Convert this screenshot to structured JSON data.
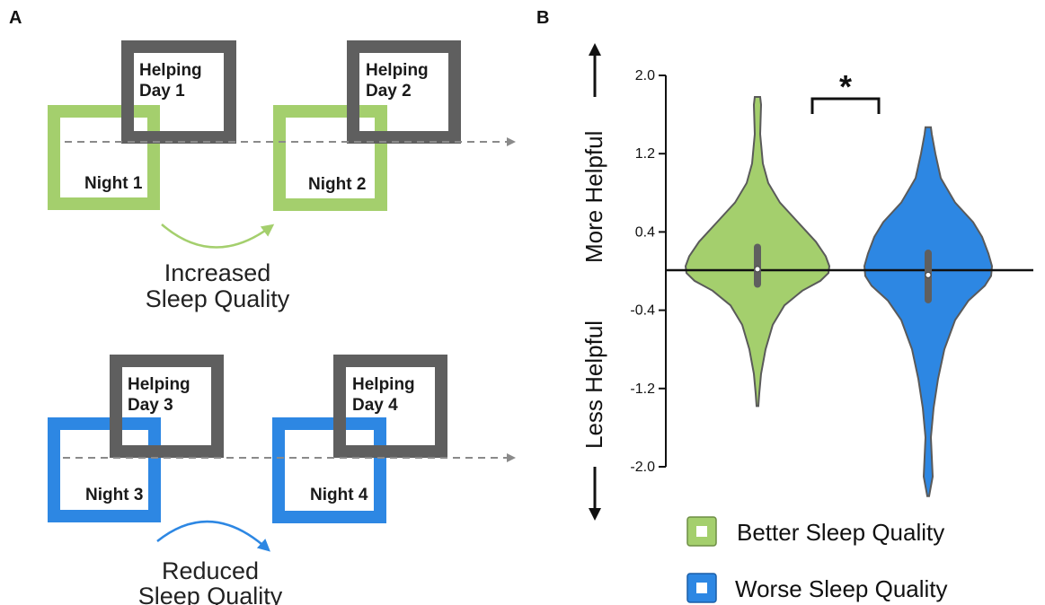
{
  "panels": {
    "a_label": "A",
    "b_label": "B"
  },
  "colors": {
    "green": "#a4cf6d",
    "blue": "#2d87e3",
    "gray": "#5f5f5f",
    "arrow_gray": "#8a8a8a"
  },
  "diagram": {
    "pairs": [
      {
        "helping_line1": "Helping",
        "helping_line2": "Day 1",
        "night": "Night 1",
        "night_color": "green"
      },
      {
        "helping_line1": "Helping",
        "helping_line2": "Day 2",
        "night": "Night 2",
        "night_color": "green"
      },
      {
        "helping_line1": "Helping",
        "helping_line2": "Day 3",
        "night": "Night 3",
        "night_color": "blue"
      },
      {
        "helping_line1": "Helping",
        "helping_line2": "Day 4",
        "night": "Night 4",
        "night_color": "blue"
      }
    ],
    "caption_top": {
      "line1": "Increased",
      "line2": "Sleep Quality"
    },
    "caption_bottom": {
      "line1": "Reduced",
      "line2": "Sleep Quality"
    }
  },
  "chart_data": {
    "type": "violin",
    "yticks": [
      "2.0",
      "1.2",
      "0.4",
      "-0.4",
      "-1.2",
      "-2.0"
    ],
    "ylim": [
      -2.0,
      2.0
    ],
    "upper_label": "More Helpful",
    "lower_label": "Less Helpful",
    "significance": "*",
    "series": [
      {
        "name": "Better Sleep Quality",
        "color": "green",
        "median": 0.02,
        "q1": -0.17,
        "q3": 0.28,
        "min": -1.38,
        "max": 1.78
      },
      {
        "name": "Worse Sleep Quality",
        "color": "blue",
        "median": -0.04,
        "q1": -0.33,
        "q3": 0.22,
        "min": -2.3,
        "max": 1.47
      }
    ]
  }
}
